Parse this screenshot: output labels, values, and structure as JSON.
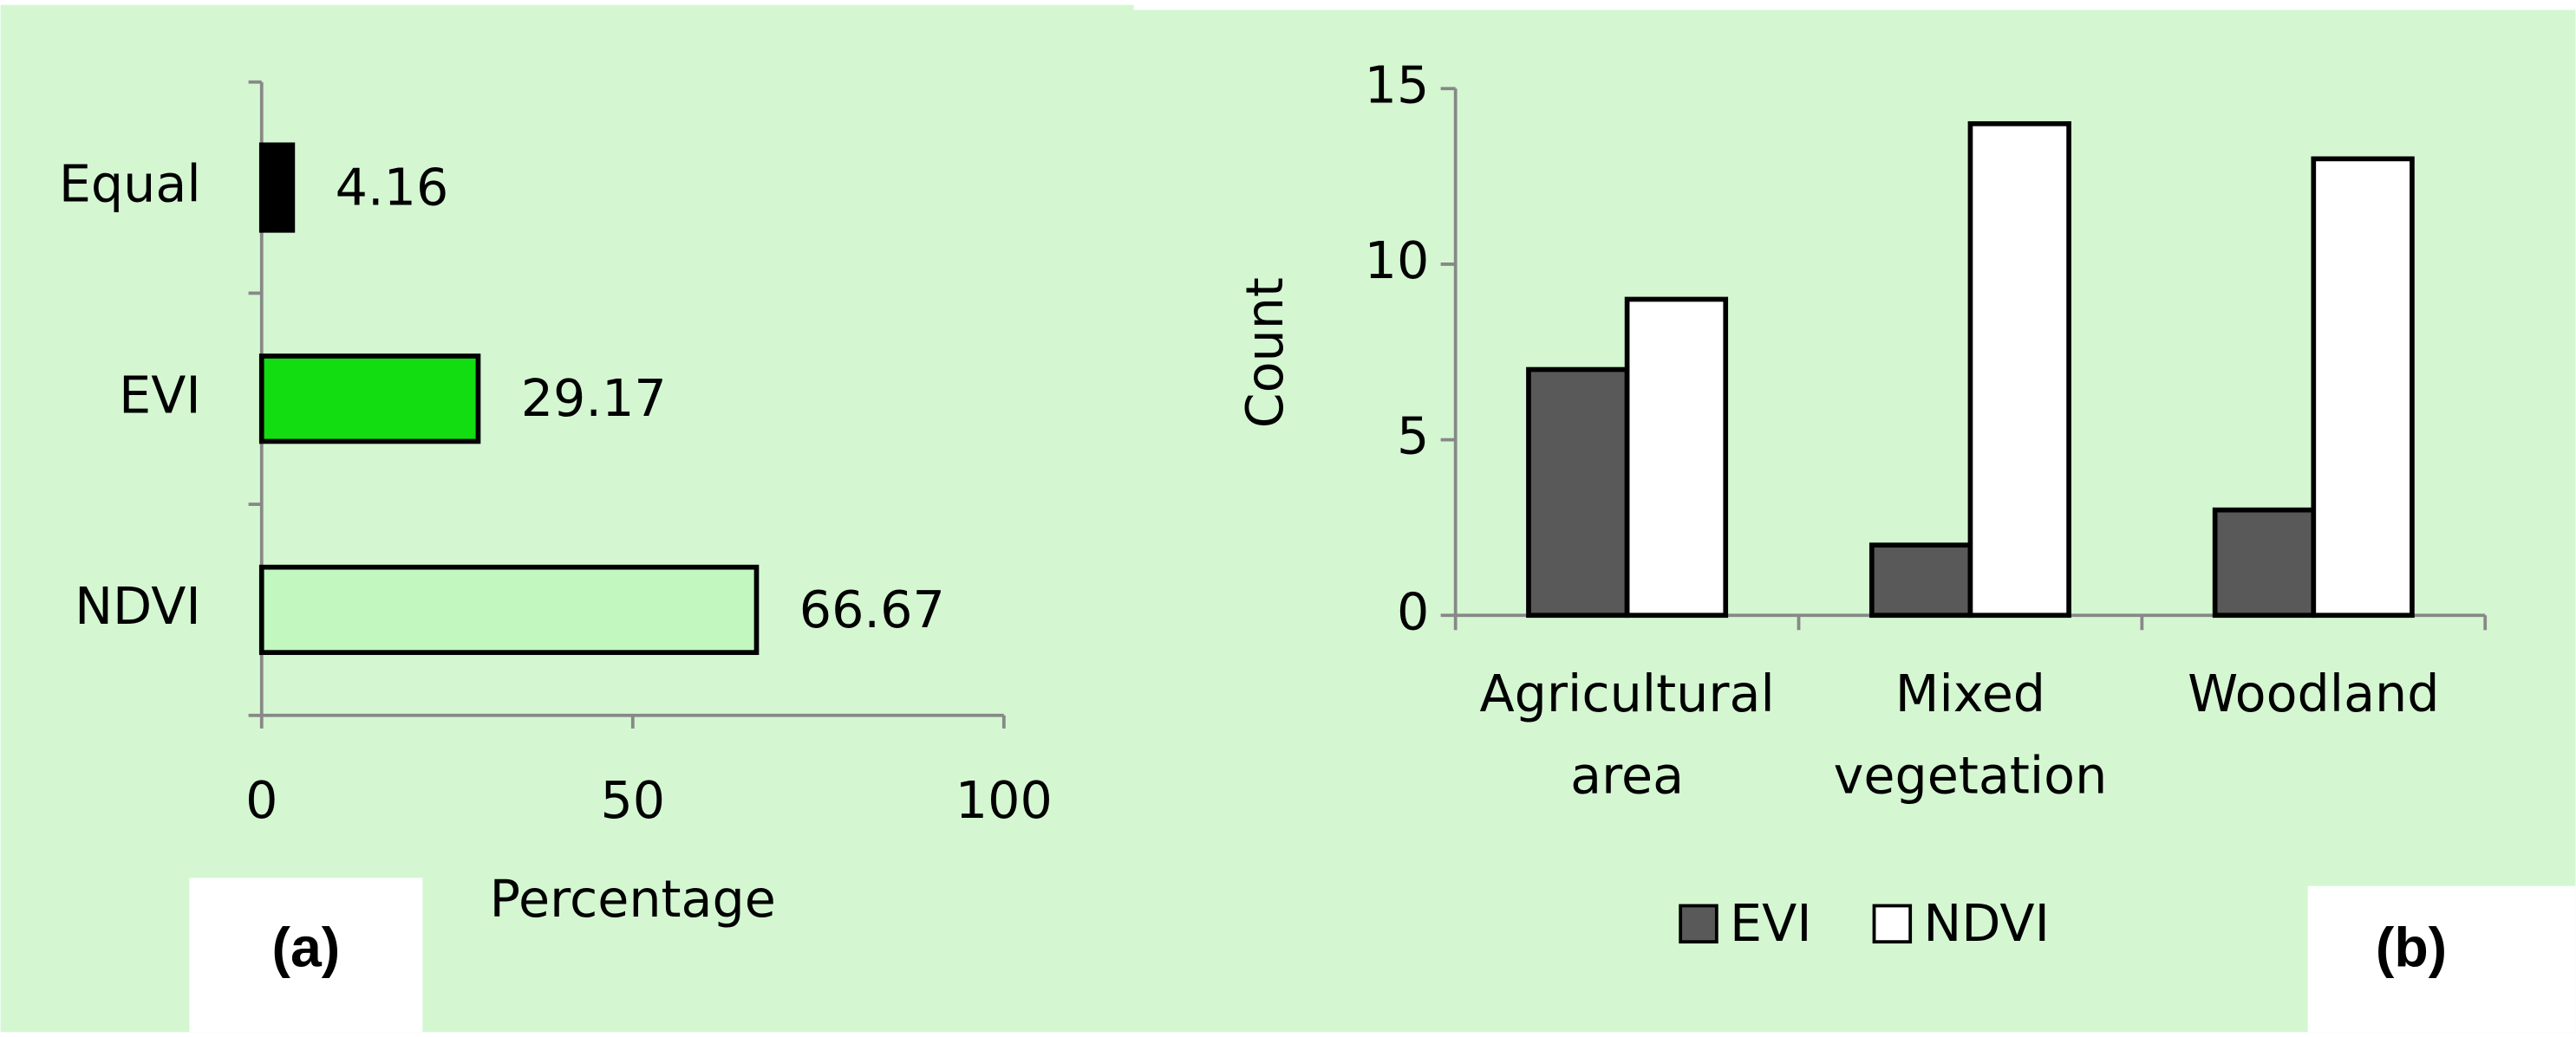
{
  "chart_data": [
    {
      "type": "hbar",
      "panel_label": "(a)",
      "x_label": "Percentage",
      "categories": [
        "Equal",
        "EVI",
        "NDVI"
      ],
      "values": [
        4.16,
        29.17,
        66.67
      ],
      "colors": [
        "#000000",
        "#11dd11",
        "#c2f7c0"
      ],
      "xlim": [
        0,
        100
      ],
      "xticks": [
        0,
        50,
        100
      ]
    },
    {
      "type": "grouped-bar",
      "panel_label": "(b)",
      "y_label": "Count",
      "categories": [
        "Agricultural area",
        "Mixed vegetation",
        "Woodland"
      ],
      "series": [
        {
          "name": "EVI",
          "color": "#595959",
          "values": [
            7,
            2,
            3
          ]
        },
        {
          "name": "NDVI",
          "color": "#ffffff",
          "values": [
            9,
            14,
            13
          ]
        }
      ],
      "ylim": [
        0,
        15
      ],
      "yticks": [
        0,
        5,
        10,
        15
      ],
      "legend": "bottom"
    }
  ]
}
